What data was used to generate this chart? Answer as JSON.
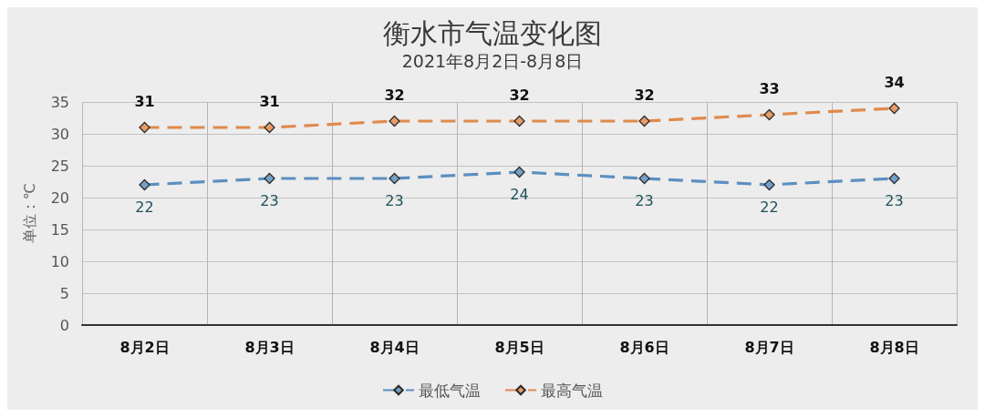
{
  "chart_data": {
    "type": "line",
    "title": "衡水市气温变化图",
    "subtitle": "2021年8月2日-8月8日",
    "ylabel": "单位：℃",
    "categories": [
      "8月2日",
      "8月3日",
      "8月4日",
      "8月5日",
      "8月6日",
      "8月7日",
      "8月8日"
    ],
    "series": [
      {
        "name": "最低气温",
        "color": "#5b8fbf",
        "values": [
          22,
          23,
          23,
          24,
          23,
          22,
          23
        ]
      },
      {
        "name": "最高气温",
        "color": "#e08a4c",
        "values": [
          31,
          31,
          32,
          32,
          32,
          33,
          34
        ]
      }
    ],
    "ylim": [
      0,
      35
    ],
    "yticks": [
      0,
      5,
      10,
      15,
      20,
      25,
      30,
      35
    ],
    "grid": true,
    "legend": "bottom",
    "marker": "diamond",
    "line_style": "dashed",
    "data_labels": true
  }
}
